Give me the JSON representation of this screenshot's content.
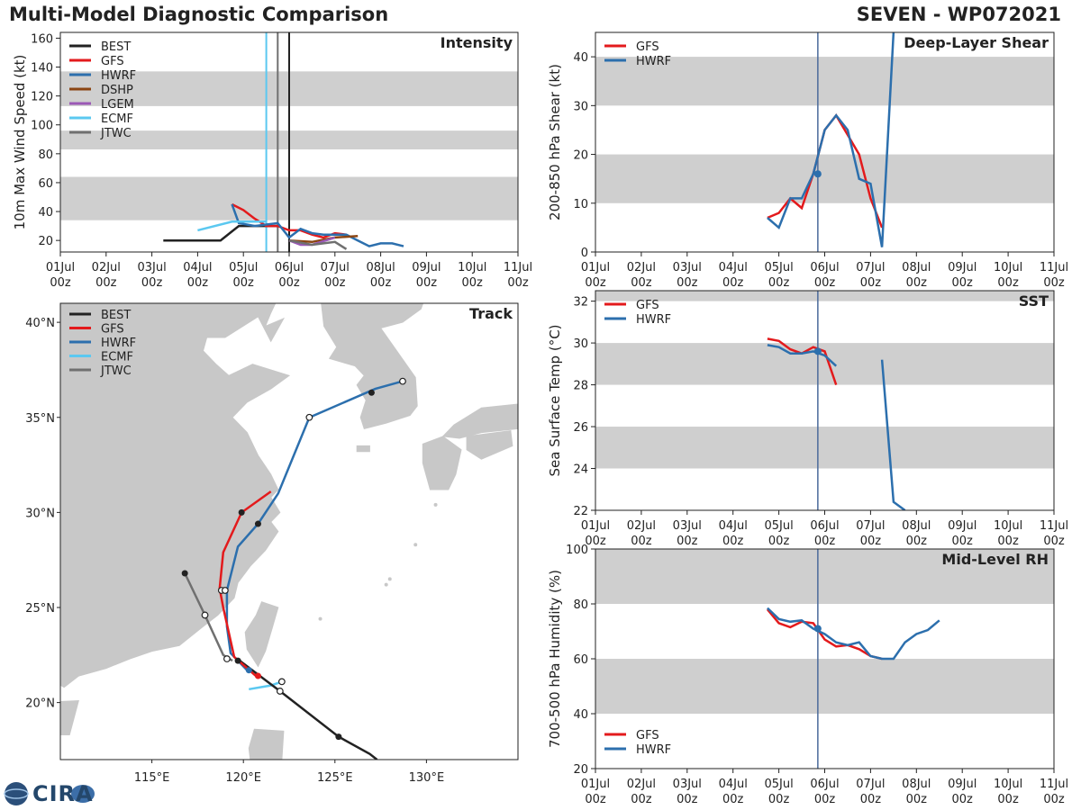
{
  "header": {
    "title": "Multi-Model Diagnostic Comparison",
    "storm": "SEVEN - WP072021"
  },
  "time_ticks": [
    {
      "day": "01Jul",
      "hour": "00z"
    },
    {
      "day": "02Jul",
      "hour": "00z"
    },
    {
      "day": "03Jul",
      "hour": "00z"
    },
    {
      "day": "04Jul",
      "hour": "00z"
    },
    {
      "day": "05Jul",
      "hour": "00z"
    },
    {
      "day": "06Jul",
      "hour": "00z"
    },
    {
      "day": "07Jul",
      "hour": "00z"
    },
    {
      "day": "08Jul",
      "hour": "00z"
    },
    {
      "day": "09Jul",
      "hour": "00z"
    },
    {
      "day": "10Jul",
      "hour": "00z"
    },
    {
      "day": "11Jul",
      "hour": "00z"
    }
  ],
  "colors": {
    "BEST": "#222222",
    "GFS": "#e31a1c",
    "HWRF": "#2c6fad",
    "DSHP": "#8b4513",
    "LGEM": "#9b59b6",
    "ECMF": "#5bc8f0",
    "JTWC": "#707070",
    "band": "#cfcfcf",
    "land": "#c8c8c8",
    "sea": "#ffffff"
  },
  "logo": {
    "text": "CIRA"
  },
  "chart_data": [
    {
      "id": "intensity",
      "type": "line",
      "title": "Intensity",
      "ylabel": "10m Max Wind Speed (kt)",
      "xlim": [
        0,
        10
      ],
      "ylim": [
        12,
        164
      ],
      "yticks": [
        20,
        40,
        60,
        80,
        100,
        120,
        140,
        160
      ],
      "bands": [
        [
          34,
          64
        ],
        [
          83,
          96
        ],
        [
          113,
          137
        ]
      ],
      "legend": [
        "BEST",
        "GFS",
        "HWRF",
        "DSHP",
        "LGEM",
        "ECMF",
        "JTWC"
      ],
      "vlines": [
        {
          "series": "ECMF",
          "x": 4.5
        },
        {
          "series": "JTWC",
          "x": 4.75
        },
        {
          "series": "BEST",
          "x": 5.0
        }
      ],
      "series": [
        {
          "name": "BEST",
          "x": [
            2.25,
            3.5,
            3.9,
            4.4,
            4.75
          ],
          "y": [
            20,
            20,
            30,
            30,
            30
          ]
        },
        {
          "name": "GFS",
          "x": [
            3.75,
            4.0,
            4.25,
            4.5,
            4.75,
            5.0,
            5.25,
            5.5,
            5.75,
            6.0,
            6.25
          ],
          "y": [
            45,
            41,
            35,
            30,
            30,
            27,
            27,
            24,
            22,
            25,
            24
          ]
        },
        {
          "name": "HWRF",
          "x": [
            3.75,
            3.9,
            4.25,
            4.5,
            4.75,
            5.0,
            5.25,
            5.5,
            5.75,
            6.0,
            6.25,
            6.5,
            6.75,
            7.0,
            7.25,
            7.5
          ],
          "y": [
            45,
            32,
            30,
            31,
            32,
            22,
            28,
            25,
            24,
            24,
            24,
            20,
            16,
            18,
            18,
            16
          ]
        },
        {
          "name": "DSHP",
          "x": [
            5.0,
            5.5,
            6.0,
            6.5
          ],
          "y": [
            20,
            19,
            22,
            23
          ]
        },
        {
          "name": "LGEM",
          "x": [
            5.0,
            5.25,
            5.5,
            6.0
          ],
          "y": [
            20,
            17,
            17,
            22
          ]
        },
        {
          "name": "ECMF",
          "x": [
            3.0,
            3.75,
            4.5
          ],
          "y": [
            27,
            33,
            33
          ]
        },
        {
          "name": "JTWC",
          "x": [
            5.0,
            5.5,
            6.0,
            6.25
          ],
          "y": [
            20,
            17,
            19,
            14
          ]
        }
      ]
    },
    {
      "id": "shear",
      "type": "line",
      "title": "Deep-Layer Shear",
      "ylabel": "200-850 hPa Shear (kt)",
      "xlim": [
        0,
        10
      ],
      "ylim": [
        0,
        45
      ],
      "yticks": [
        0,
        10,
        20,
        30,
        40
      ],
      "bands": [
        [
          10,
          20
        ],
        [
          30,
          40
        ]
      ],
      "legend": [
        "GFS",
        "HWRF"
      ],
      "vline": 4.85,
      "marker": {
        "x": 4.85,
        "y": 16
      },
      "series": [
        {
          "name": "GFS",
          "x": [
            3.75,
            4.0,
            4.25,
            4.5,
            4.75,
            5.0,
            5.25,
            5.5,
            5.75,
            6.0,
            6.25
          ],
          "y": [
            7,
            8,
            11,
            9,
            16,
            25,
            28,
            24,
            20,
            11,
            5
          ]
        },
        {
          "name": "HWRF",
          "x": [
            3.75,
            4.0,
            4.25,
            4.5,
            4.75,
            5.0,
            5.25,
            5.5,
            5.75,
            6.0,
            6.25,
            6.5
          ],
          "y": [
            7,
            5,
            11,
            11,
            16,
            25,
            28,
            25,
            15,
            14,
            1,
            45
          ]
        }
      ]
    },
    {
      "id": "sst",
      "type": "line",
      "title": "SST",
      "ylabel": "Sea Surface Temp (°C)",
      "xlim": [
        0,
        10
      ],
      "ylim": [
        22,
        32.5
      ],
      "yticks": [
        22,
        24,
        26,
        28,
        30,
        32
      ],
      "bands": [
        [
          24,
          26
        ],
        [
          28,
          30
        ],
        [
          32,
          32.5
        ]
      ],
      "legend": [
        "GFS",
        "HWRF"
      ],
      "vline": 4.85,
      "marker": {
        "x": 4.85,
        "y": 29.6
      },
      "series": [
        {
          "name": "GFS",
          "x": [
            3.75,
            4.0,
            4.25,
            4.5,
            4.75,
            5.0,
            5.25
          ],
          "y": [
            30.2,
            30.1,
            29.7,
            29.5,
            29.8,
            29.6,
            28.0
          ]
        },
        {
          "name": "HWRF",
          "x": [
            3.75,
            4.0,
            4.25,
            4.5,
            4.75,
            5.0,
            5.25
          ],
          "y": [
            29.9,
            29.8,
            29.5,
            29.5,
            29.6,
            29.4,
            28.9
          ]
        },
        {
          "name": "HWRF",
          "x": [
            6.25,
            6.5,
            6.75
          ],
          "y": [
            29.2,
            22.4,
            22
          ]
        }
      ]
    },
    {
      "id": "rh",
      "type": "line",
      "title": "Mid-Level RH",
      "ylabel": "700-500 hPa Humidity (%)",
      "xlim": [
        0,
        10
      ],
      "ylim": [
        20,
        100
      ],
      "yticks": [
        20,
        40,
        60,
        80,
        100
      ],
      "bands": [
        [
          40,
          60
        ],
        [
          80,
          100
        ]
      ],
      "legend": [
        "GFS",
        "HWRF"
      ],
      "legend_loc": "lower-left",
      "vline": 4.85,
      "marker": {
        "x": 4.85,
        "y": 71
      },
      "series": [
        {
          "name": "GFS",
          "x": [
            3.75,
            4.0,
            4.25,
            4.5,
            4.75,
            5.0,
            5.25,
            5.5,
            5.75,
            6.0,
            6.25
          ],
          "y": [
            78,
            73,
            71.5,
            73.5,
            73,
            67,
            64.5,
            65,
            63.5,
            61,
            60
          ]
        },
        {
          "name": "HWRF",
          "x": [
            3.75,
            4.0,
            4.25,
            4.5,
            4.75,
            5.0,
            5.25,
            5.5,
            5.75,
            6.0,
            6.25,
            6.5,
            6.75,
            7.0,
            7.25,
            7.5
          ],
          "y": [
            78.5,
            74.5,
            73.5,
            74,
            71,
            69,
            66,
            65,
            66,
            61,
            60,
            60,
            66,
            69,
            70.5,
            74
          ]
        }
      ]
    },
    {
      "id": "track",
      "type": "scatter",
      "title": "Track",
      "xlim": [
        110,
        135
      ],
      "ylim": [
        17,
        41
      ],
      "xticks": [
        {
          "v": 115,
          "label": "115°E"
        },
        {
          "v": 120,
          "label": "120°E"
        },
        {
          "v": 125,
          "label": "125°E"
        },
        {
          "v": 130,
          "label": "130°E"
        }
      ],
      "yticks": [
        {
          "v": 20,
          "label": "20°N"
        },
        {
          "v": 25,
          "label": "25°N"
        },
        {
          "v": 30,
          "label": "30°N"
        },
        {
          "v": 35,
          "label": "35°N"
        },
        {
          "v": 40,
          "label": "40°N"
        }
      ],
      "legend": [
        "BEST",
        "GFS",
        "HWRF",
        "ECMF",
        "JTWC"
      ],
      "series": [
        {
          "name": "BEST",
          "lon": [
            127.3,
            126.9,
            125.2,
            122.0,
            119.8
          ],
          "lat": [
            17.0,
            17.3,
            18.2,
            20.6,
            22.2
          ],
          "filled": [
            false,
            false,
            true,
            false,
            true
          ]
        },
        {
          "name": "GFS",
          "lon": [
            120.8,
            119.5,
            118.9,
            118.7,
            118.9,
            119.9,
            121.5
          ],
          "lat": [
            21.3,
            22.4,
            25.0,
            26.0,
            27.9,
            30.0,
            31.1
          ],
          "filled": [
            true,
            false,
            false,
            false,
            false,
            true,
            false
          ]
        },
        {
          "name": "HWRF",
          "lon": [
            120.3,
            119.3,
            119.1,
            119.1,
            119.7,
            120.8,
            121.9,
            123.6,
            127.2,
            128.7
          ],
          "lat": [
            21.6,
            22.6,
            24.0,
            25.9,
            28.2,
            29.4,
            31.0,
            35.0,
            36.5,
            36.9
          ],
          "filled": [
            true,
            false,
            false,
            false,
            false,
            true,
            false,
            false,
            true,
            false
          ]
        },
        {
          "name": "ECMF",
          "lon": [
            120.3,
            121.5,
            122.1
          ],
          "lat": [
            20.7,
            20.9,
            21.1
          ],
          "filled": [
            false,
            false,
            false
          ]
        },
        {
          "name": "JTWC",
          "lon": [
            119.4,
            118.9,
            117.9,
            116.8
          ],
          "lat": [
            22.2,
            22.5,
            24.6,
            26.8
          ],
          "filled": [
            true,
            true,
            false,
            true
          ]
        }
      ],
      "open_markers": [
        {
          "lon": 122.0,
          "lat": 20.6
        },
        {
          "lon": 118.8,
          "lat": 25.9
        },
        {
          "lon": 119.0,
          "lat": 25.9
        },
        {
          "lon": 123.6,
          "lat": 35.0
        },
        {
          "lon": 128.7,
          "lat": 36.9
        },
        {
          "lon": 122.1,
          "lat": 21.1
        },
        {
          "lon": 117.9,
          "lat": 24.6
        },
        {
          "lon": 119.1,
          "lat": 22.3
        }
      ],
      "filled_markers": [
        {
          "series": "BEST",
          "lon": 125.2,
          "lat": 18.2
        },
        {
          "series": "BEST",
          "lon": 119.7,
          "lat": 22.2
        },
        {
          "series": "BEST",
          "lon": 119.9,
          "lat": 30.0
        },
        {
          "series": "BEST",
          "lon": 120.8,
          "lat": 29.4
        },
        {
          "series": "BEST",
          "lon": 127.0,
          "lat": 36.3
        },
        {
          "series": "BEST",
          "lon": 116.8,
          "lat": 26.8
        },
        {
          "series": "GFS",
          "lon": 120.8,
          "lat": 21.4
        },
        {
          "series": "HWRF",
          "lon": 120.3,
          "lat": 21.7
        },
        {
          "series": "ECMF",
          "lon": 122.1,
          "lat": 21.1
        }
      ]
    }
  ]
}
